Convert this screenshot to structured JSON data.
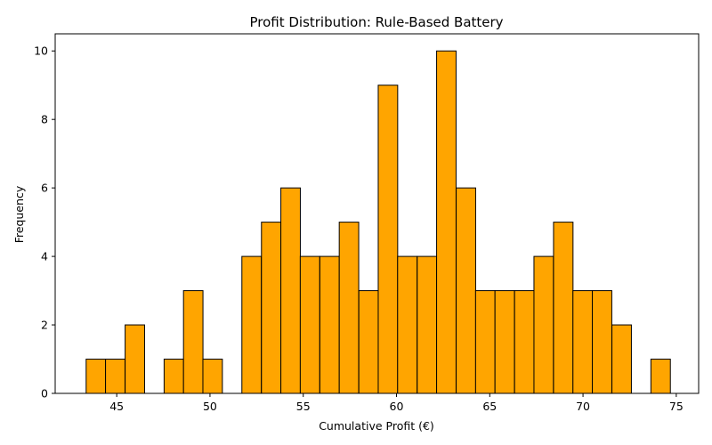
{
  "chart_data": {
    "type": "bar",
    "title": "Profit Distribution: Rule-Based Battery",
    "xlabel": "Cumulative Profit (€)",
    "ylabel": "Frequency",
    "xlim": [
      41.7,
      76.2
    ],
    "ylim": [
      0,
      10.5
    ],
    "xticks": [
      45,
      50,
      55,
      60,
      65,
      70,
      75
    ],
    "yticks": [
      0,
      2,
      4,
      6,
      8,
      10
    ],
    "bin_width": 1.044,
    "bins": [
      {
        "start": 43.36,
        "count": 1
      },
      {
        "start": 44.4,
        "count": 1
      },
      {
        "start": 45.45,
        "count": 2
      },
      {
        "start": 46.49,
        "count": 0
      },
      {
        "start": 47.54,
        "count": 1
      },
      {
        "start": 48.58,
        "count": 3
      },
      {
        "start": 49.62,
        "count": 1
      },
      {
        "start": 50.67,
        "count": 0
      },
      {
        "start": 51.71,
        "count": 4
      },
      {
        "start": 52.76,
        "count": 5
      },
      {
        "start": 53.8,
        "count": 6
      },
      {
        "start": 54.84,
        "count": 4
      },
      {
        "start": 55.89,
        "count": 4
      },
      {
        "start": 56.93,
        "count": 5
      },
      {
        "start": 57.98,
        "count": 3
      },
      {
        "start": 59.02,
        "count": 9
      },
      {
        "start": 60.06,
        "count": 4
      },
      {
        "start": 61.11,
        "count": 4
      },
      {
        "start": 62.15,
        "count": 10
      },
      {
        "start": 63.2,
        "count": 6
      },
      {
        "start": 64.24,
        "count": 3
      },
      {
        "start": 65.28,
        "count": 3
      },
      {
        "start": 66.33,
        "count": 3
      },
      {
        "start": 67.37,
        "count": 4
      },
      {
        "start": 68.42,
        "count": 5
      },
      {
        "start": 69.46,
        "count": 3
      },
      {
        "start": 70.5,
        "count": 3
      },
      {
        "start": 71.55,
        "count": 2
      },
      {
        "start": 72.59,
        "count": 0
      },
      {
        "start": 73.64,
        "count": 1
      }
    ],
    "grid": false,
    "bar_color": "#FFA500",
    "edge_color": "#000000"
  }
}
